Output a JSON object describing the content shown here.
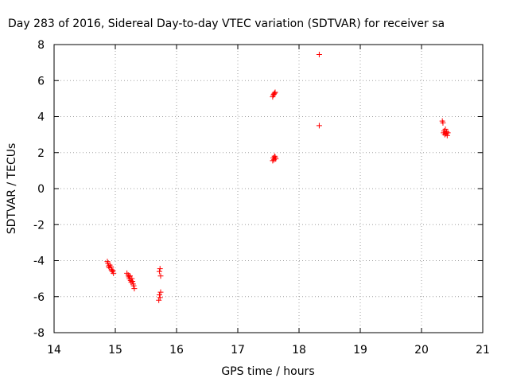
{
  "chart_data": {
    "type": "scatter",
    "title": "Day 283 of 2016, Sidereal Day-to-day VTEC variation (SDTVAR) for receiver sa",
    "xlabel": "GPS time / hours",
    "ylabel": "SDTVAR / TECUs",
    "xlim": [
      14,
      21
    ],
    "ylim": [
      -8,
      8
    ],
    "xticks": [
      "14",
      "15",
      "16",
      "17",
      "18",
      "19",
      "20",
      "21"
    ],
    "yticks": [
      "8",
      "6",
      "4",
      "2",
      "0",
      "-2",
      "-4",
      "-6",
      "-8"
    ],
    "grid": true,
    "marker": "+",
    "series": [
      {
        "color": "#ff0000",
        "points": [
          [
            14.87,
            -4.05
          ],
          [
            14.88,
            -4.15
          ],
          [
            14.89,
            -4.3
          ],
          [
            14.9,
            -4.4
          ],
          [
            14.91,
            -4.25
          ],
          [
            14.93,
            -4.35
          ],
          [
            14.94,
            -4.5
          ],
          [
            14.95,
            -4.6
          ],
          [
            14.96,
            -4.55
          ],
          [
            14.97,
            -4.7
          ],
          [
            15.19,
            -4.7
          ],
          [
            15.21,
            -4.8
          ],
          [
            15.22,
            -4.9
          ],
          [
            15.23,
            -5.0
          ],
          [
            15.24,
            -4.85
          ],
          [
            15.25,
            -5.1
          ],
          [
            15.26,
            -5.2
          ],
          [
            15.27,
            -5.0
          ],
          [
            15.28,
            -5.15
          ],
          [
            15.29,
            -5.3
          ],
          [
            15.3,
            -5.4
          ],
          [
            15.31,
            -5.55
          ],
          [
            15.72,
            -4.6
          ],
          [
            15.73,
            -4.45
          ],
          [
            15.74,
            -4.85
          ],
          [
            15.72,
            -5.9
          ],
          [
            15.73,
            -6.05
          ],
          [
            15.71,
            -6.2
          ],
          [
            15.74,
            -5.75
          ],
          [
            17.57,
            5.1
          ],
          [
            17.58,
            5.2
          ],
          [
            17.6,
            5.3
          ],
          [
            17.61,
            5.35
          ],
          [
            17.59,
            5.25
          ],
          [
            17.57,
            1.55
          ],
          [
            17.58,
            1.7
          ],
          [
            17.59,
            1.6
          ],
          [
            17.6,
            1.8
          ],
          [
            17.61,
            1.75
          ],
          [
            17.62,
            1.65
          ],
          [
            18.33,
            7.45
          ],
          [
            18.33,
            3.5
          ],
          [
            20.34,
            3.75
          ],
          [
            20.35,
            3.65
          ],
          [
            20.36,
            3.1
          ],
          [
            20.37,
            3.2
          ],
          [
            20.38,
            3.0
          ],
          [
            20.39,
            3.3
          ],
          [
            20.4,
            3.05
          ],
          [
            20.41,
            3.15
          ],
          [
            20.42,
            2.95
          ],
          [
            20.43,
            3.1
          ]
        ]
      }
    ]
  }
}
